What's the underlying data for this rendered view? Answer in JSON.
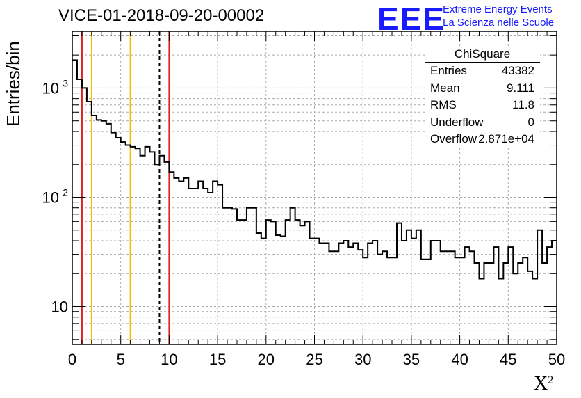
{
  "title": "VICE-01-2018-09-20-00002",
  "logo": {
    "text": "EEE",
    "line1": "Extreme Energy Events",
    "line2": "La Scienza nelle Scuole",
    "color": "#1a1aff"
  },
  "stats": {
    "name": "ChiSquare",
    "rows": [
      {
        "key": "Entries",
        "value": "43382"
      },
      {
        "key": "Mean",
        "value": "9.111"
      },
      {
        "key": "RMS",
        "value": "11.8"
      },
      {
        "key": "Underflow",
        "value": "0"
      },
      {
        "key": "Overflow",
        "value": "2.871e+04"
      }
    ]
  },
  "chart_data": {
    "type": "bar",
    "style": "step-histogram",
    "title": "VICE-01-2018-09-20-00002",
    "xlabel": "X",
    "xlabel_sup": "2",
    "ylabel": "Entries/bin",
    "xlim": [
      0,
      50
    ],
    "ylim": [
      4.5,
      3300
    ],
    "yscale": "log",
    "grid": true,
    "x_ticks": [
      {
        "value": 0,
        "label": "0"
      },
      {
        "value": 5,
        "label": "5"
      },
      {
        "value": 10,
        "label": "10"
      },
      {
        "value": 15,
        "label": "15"
      },
      {
        "value": 20,
        "label": "20"
      },
      {
        "value": 25,
        "label": "25"
      },
      {
        "value": 30,
        "label": "30"
      },
      {
        "value": 35,
        "label": "35"
      },
      {
        "value": 40,
        "label": "40"
      },
      {
        "value": 45,
        "label": "45"
      },
      {
        "value": 50,
        "label": "50"
      }
    ],
    "y_ticks": [
      {
        "value": 10,
        "label": "10"
      },
      {
        "value": 100,
        "label": "10",
        "sup": "2"
      },
      {
        "value": 1000,
        "label": "10",
        "sup": "3"
      }
    ],
    "bin_width": 0.5,
    "bin_values": [
      1800,
      1200,
      1000,
      750,
      560,
      510,
      500,
      470,
      390,
      350,
      320,
      300,
      290,
      280,
      240,
      290,
      260,
      200,
      240,
      210,
      170,
      150,
      140,
      150,
      120,
      120,
      140,
      120,
      110,
      140,
      130,
      80,
      80,
      78,
      62,
      62,
      80,
      80,
      47,
      42,
      62,
      60,
      45,
      44,
      62,
      80,
      62,
      55,
      60,
      42,
      42,
      38,
      38,
      32,
      32,
      38,
      40,
      35,
      38,
      33,
      28,
      38,
      40,
      30,
      32,
      28,
      28,
      58,
      40,
      50,
      42,
      50,
      27,
      27,
      40,
      40,
      32,
      32,
      32,
      28,
      28,
      35,
      32,
      25,
      18,
      25,
      25,
      35,
      18,
      25,
      35,
      20,
      25,
      28,
      21,
      18,
      50,
      25,
      35,
      40
    ],
    "bin_values_note": "bins from 0 to 50 in steps of 0.5 (read-off estimates)",
    "reference_lines": [
      {
        "x": 1,
        "color": "#e02020",
        "style": "solid"
      },
      {
        "x": 2,
        "color": "#f0c000",
        "style": "solid"
      },
      {
        "x": 6,
        "color": "#f0c000",
        "style": "solid"
      },
      {
        "x": 9,
        "color": "#000000",
        "style": "dashed"
      },
      {
        "x": 10,
        "color": "#e02020",
        "style": "solid"
      }
    ]
  }
}
